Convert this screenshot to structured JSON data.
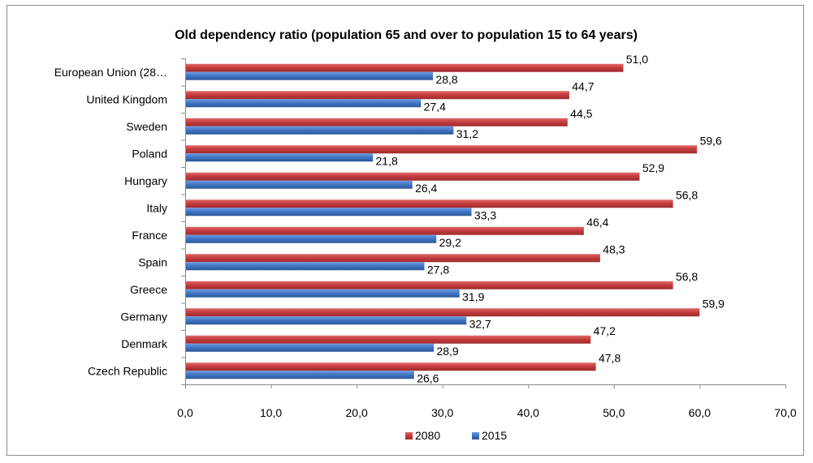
{
  "chart_data": {
    "type": "bar",
    "orientation": "horizontal",
    "title": "Old dependency ratio (population 65 and over to population 15 to 64 years)",
    "categories": [
      "European Union (28…",
      "United Kingdom",
      "Sweden",
      "Poland",
      "Hungary",
      "Italy",
      "France",
      "Spain",
      "Greece",
      "Germany",
      "Denmark",
      "Czech Republic"
    ],
    "series": [
      {
        "name": "2080",
        "color": "#c0393b",
        "values": [
          51.0,
          44.7,
          44.5,
          59.6,
          52.9,
          56.8,
          46.4,
          48.3,
          56.8,
          59.9,
          47.2,
          47.8
        ],
        "labels": [
          "51,0",
          "44,7",
          "44,5",
          "59,6",
          "52,9",
          "56,8",
          "46,4",
          "48,3",
          "56,8",
          "59,9",
          "47,2",
          "47,8"
        ]
      },
      {
        "name": "2015",
        "color": "#3f74c2",
        "values": [
          28.8,
          27.4,
          31.2,
          21.8,
          26.4,
          33.3,
          29.2,
          27.8,
          31.9,
          32.7,
          28.9,
          26.6
        ],
        "labels": [
          "28,8",
          "27,4",
          "31,2",
          "21,8",
          "26,4",
          "33,3",
          "29,2",
          "27,8",
          "31,9",
          "32,7",
          "28,9",
          "26,6"
        ]
      }
    ],
    "xlim": [
      0,
      70
    ],
    "xticks": [
      "0,0",
      "10,0",
      "20,0",
      "30,0",
      "40,0",
      "50,0",
      "60,0",
      "70,0"
    ],
    "grid": false,
    "legend": "bottom"
  }
}
